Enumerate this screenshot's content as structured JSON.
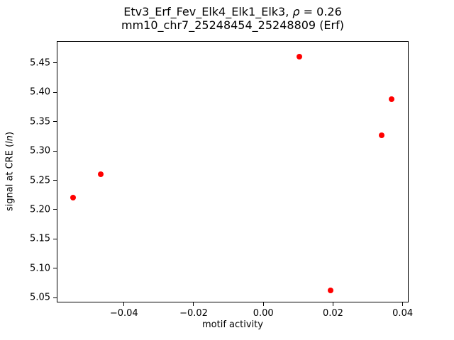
{
  "figure": {
    "background": "#ffffff"
  },
  "chart_data": {
    "type": "scatter",
    "title": "Etv3_Erf_Fev_Elk4_Elk1_Elk3, ρ = 0.26",
    "subtitle": "mm10_chr7_25248454_25248809 (Erf)",
    "title_parts": {
      "prefix": "Etv3_Erf_Fev_Elk4_Elk1_Elk3, ",
      "rho_symbol": "ρ",
      "suffix": " = 0.26"
    },
    "correlation_rho": 0.26,
    "xlabel": "motif activity",
    "ylabel_parts": {
      "pre": "signal at CRE (",
      "math": "ln",
      "post": ")"
    },
    "ylabel": "signal at CRE (ln)",
    "marker_color": "#ff0000",
    "axis_color": "#000000",
    "grid": false,
    "legend": "none",
    "xlim": [
      -0.0593,
      0.0417
    ],
    "ylim": [
      5.042,
      5.487
    ],
    "xticks": [
      {
        "value": -0.04,
        "label": "−0.04"
      },
      {
        "value": -0.02,
        "label": "−0.02"
      },
      {
        "value": 0.0,
        "label": "0.00"
      },
      {
        "value": 0.02,
        "label": "0.02"
      },
      {
        "value": 0.04,
        "label": "0.04"
      }
    ],
    "yticks": [
      {
        "value": 5.05,
        "label": "5.05"
      },
      {
        "value": 5.1,
        "label": "5.10"
      },
      {
        "value": 5.15,
        "label": "5.15"
      },
      {
        "value": 5.2,
        "label": "5.20"
      },
      {
        "value": 5.25,
        "label": "5.25"
      },
      {
        "value": 5.3,
        "label": "5.30"
      },
      {
        "value": 5.35,
        "label": "5.35"
      },
      {
        "value": 5.4,
        "label": "5.40"
      },
      {
        "value": 5.45,
        "label": "5.45"
      }
    ],
    "points": [
      {
        "x": -0.0547,
        "y": 5.221
      },
      {
        "x": -0.0466,
        "y": 5.26
      },
      {
        "x": 0.0103,
        "y": 5.46
      },
      {
        "x": 0.0194,
        "y": 5.062
      },
      {
        "x": 0.034,
        "y": 5.327
      },
      {
        "x": 0.0368,
        "y": 5.388
      }
    ]
  }
}
